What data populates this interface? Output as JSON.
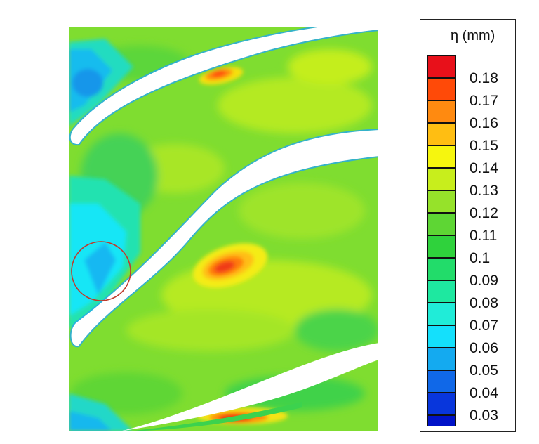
{
  "legend": {
    "title": "η (mm)",
    "levels": [
      {
        "label": "0.18",
        "color": "#e8101a"
      },
      {
        "label": "0.17",
        "color": "#ff4a08"
      },
      {
        "label": "0.16",
        "color": "#ff8a10"
      },
      {
        "label": "0.15",
        "color": "#ffbe12"
      },
      {
        "label": "0.14",
        "color": "#f6f60e"
      },
      {
        "label": "0.13",
        "color": "#c8ee1c"
      },
      {
        "label": "0.12",
        "color": "#96e22a"
      },
      {
        "label": "0.11",
        "color": "#5ed634"
      },
      {
        "label": "0.1",
        "color": "#2fd23c"
      },
      {
        "label": "0.09",
        "color": "#22dc6a"
      },
      {
        "label": "0.08",
        "color": "#1ee8a0"
      },
      {
        "label": "0.07",
        "color": "#20ecd8"
      },
      {
        "label": "0.06",
        "color": "#14e0fc"
      },
      {
        "label": "0.05",
        "color": "#14aaf0"
      },
      {
        "label": "0.04",
        "color": "#1068e8"
      },
      {
        "label": "0.03",
        "color": "#0836dc"
      },
      {
        "label": "",
        "color": "#0012c8"
      }
    ]
  },
  "colors": {
    "base_green": "#78dc2c",
    "marker_circle": "#c0392b",
    "blade_fill": "#ffffff",
    "edge_blue": "#22a8f0"
  }
}
